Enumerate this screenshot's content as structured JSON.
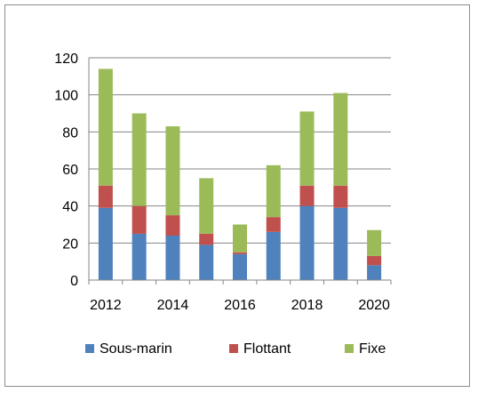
{
  "chart_data": {
    "type": "bar",
    "stacked": true,
    "x": [
      2012,
      2013,
      2014,
      2015,
      2016,
      2017,
      2018,
      2019,
      2020
    ],
    "x_tick_labels": [
      "2012",
      "2014",
      "2016",
      "2018",
      "2020"
    ],
    "y_tick_labels": [
      "0",
      "20",
      "40",
      "60",
      "80",
      "100",
      "120"
    ],
    "ylim": [
      0,
      120
    ],
    "grid": true,
    "legend": "bottom",
    "series": [
      {
        "name": "Sous-marin",
        "color": "#4f81bd",
        "values": [
          39,
          25,
          24,
          19,
          14,
          26,
          40,
          39,
          8
        ]
      },
      {
        "name": "Flottant",
        "color": "#c0504d",
        "values": [
          12,
          15,
          11,
          6,
          1,
          8,
          11,
          12,
          5
        ]
      },
      {
        "name": "Fixe",
        "color": "#9bbb59",
        "values": [
          63,
          50,
          48,
          30,
          15,
          28,
          40,
          50,
          14
        ]
      }
    ]
  }
}
